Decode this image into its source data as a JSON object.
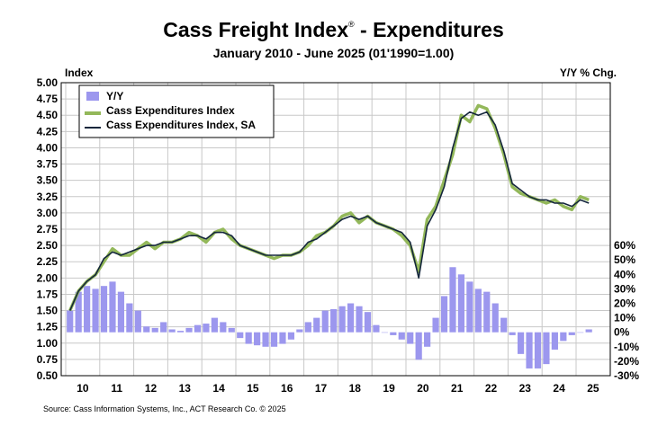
{
  "title": "Cass Freight Index",
  "title_mark": "®",
  "title_suffix": " - Expenditures",
  "subtitle": "January 2010 - June 2025 (01'1990=1.00)",
  "left_axis_label": "Index",
  "right_axis_label": "Y/Y % Chg.",
  "source": "Source: Cass Information Systems, Inc., ACT Research Co. © 2025",
  "colors": {
    "yy_bars": "#9c97ee",
    "index_line": "#93b85a",
    "sa_line": "#14263c",
    "grid": "#c8c8c8"
  },
  "chart_data": {
    "type": "line",
    "grid": true,
    "legend_position": "top-left",
    "x_tick_labels": [
      "10",
      "11",
      "12",
      "13",
      "14",
      "15",
      "16",
      "17",
      "18",
      "19",
      "20",
      "21",
      "22",
      "23",
      "24",
      "25"
    ],
    "left_axis": {
      "ylim": [
        0.5,
        5.0
      ],
      "ticks": [
        "0.50",
        "0.75",
        "1.00",
        "1.25",
        "1.50",
        "1.75",
        "2.00",
        "2.25",
        "2.50",
        "2.75",
        "3.00",
        "3.25",
        "3.50",
        "3.75",
        "4.00",
        "4.25",
        "4.50",
        "4.75",
        "5.00"
      ]
    },
    "right_axis": {
      "ylim": [
        -30,
        60
      ],
      "ticks": [
        "-30%",
        "-20%",
        "-10%",
        "0%",
        "10%",
        "20%",
        "30%",
        "40%",
        "50%",
        "60%"
      ]
    },
    "series": [
      {
        "name": "Y/Y",
        "type": "bar",
        "axis": "right",
        "unit": "%",
        "x_quarters": [
          "10Q1",
          "10Q2",
          "10Q3",
          "10Q4",
          "11Q1",
          "11Q2",
          "11Q3",
          "11Q4",
          "12Q1",
          "12Q2",
          "12Q3",
          "12Q4",
          "13Q1",
          "13Q2",
          "13Q3",
          "13Q4",
          "14Q1",
          "14Q2",
          "14Q3",
          "14Q4",
          "15Q1",
          "15Q2",
          "15Q3",
          "15Q4",
          "16Q1",
          "16Q2",
          "16Q3",
          "16Q4",
          "17Q1",
          "17Q2",
          "17Q3",
          "17Q4",
          "18Q1",
          "18Q2",
          "18Q3",
          "18Q4",
          "19Q1",
          "19Q2",
          "19Q3",
          "19Q4",
          "20Q1",
          "20Q2",
          "20Q3",
          "20Q4",
          "21Q1",
          "21Q2",
          "21Q3",
          "21Q4",
          "22Q1",
          "22Q2",
          "22Q3",
          "22Q4",
          "23Q1",
          "23Q2",
          "23Q3",
          "23Q4",
          "24Q1",
          "24Q2",
          "24Q3",
          "24Q4",
          "25Q1",
          "25Q2"
        ],
        "values": [
          15,
          28,
          32,
          30,
          32,
          35,
          28,
          20,
          15,
          4,
          3,
          7,
          2,
          1,
          3,
          5,
          6,
          10,
          7,
          3,
          -4,
          -8,
          -9,
          -10,
          -10,
          -8,
          -5,
          2,
          7,
          10,
          15,
          16,
          18,
          20,
          18,
          14,
          5,
          0,
          -2,
          -5,
          -8,
          -19,
          -10,
          10,
          25,
          45,
          40,
          35,
          30,
          28,
          20,
          10,
          -2,
          -15,
          -25,
          -25,
          -22,
          -12,
          -6,
          -2,
          0,
          2
        ]
      },
      {
        "name": "Cass Expenditures Index",
        "type": "line",
        "axis": "left",
        "x_quarters": [
          "10Q1",
          "10Q2",
          "10Q3",
          "10Q4",
          "11Q1",
          "11Q2",
          "11Q3",
          "11Q4",
          "12Q1",
          "12Q2",
          "12Q3",
          "12Q4",
          "13Q1",
          "13Q2",
          "13Q3",
          "13Q4",
          "14Q1",
          "14Q2",
          "14Q3",
          "14Q4",
          "15Q1",
          "15Q2",
          "15Q3",
          "15Q4",
          "16Q1",
          "16Q2",
          "16Q3",
          "16Q4",
          "17Q1",
          "17Q2",
          "17Q3",
          "17Q4",
          "18Q1",
          "18Q2",
          "18Q3",
          "18Q4",
          "19Q1",
          "19Q2",
          "19Q3",
          "19Q4",
          "20Q1",
          "20Q2",
          "20Q3",
          "20Q4",
          "21Q1",
          "21Q2",
          "21Q3",
          "21Q4",
          "22Q1",
          "22Q2",
          "22Q3",
          "22Q4",
          "23Q1",
          "23Q2",
          "23Q3",
          "23Q4",
          "24Q1",
          "24Q2",
          "24Q3",
          "24Q4",
          "25Q1",
          "25Q2"
        ],
        "values": [
          1.5,
          1.8,
          1.95,
          2.05,
          2.25,
          2.45,
          2.35,
          2.35,
          2.45,
          2.55,
          2.45,
          2.55,
          2.55,
          2.6,
          2.7,
          2.65,
          2.55,
          2.7,
          2.75,
          2.6,
          2.5,
          2.45,
          2.4,
          2.35,
          2.3,
          2.35,
          2.35,
          2.4,
          2.5,
          2.65,
          2.7,
          2.8,
          2.95,
          3.0,
          2.85,
          2.95,
          2.85,
          2.8,
          2.75,
          2.65,
          2.5,
          2.1,
          2.9,
          3.1,
          3.5,
          3.9,
          4.5,
          4.4,
          4.65,
          4.6,
          4.3,
          3.9,
          3.4,
          3.3,
          3.25,
          3.2,
          3.15,
          3.2,
          3.1,
          3.05,
          3.25,
          3.2
        ]
      },
      {
        "name": "Cass Expenditures Index, SA",
        "type": "line",
        "axis": "left",
        "x_quarters": [
          "10Q1",
          "10Q2",
          "10Q3",
          "10Q4",
          "11Q1",
          "11Q2",
          "11Q3",
          "11Q4",
          "12Q1",
          "12Q2",
          "12Q3",
          "12Q4",
          "13Q1",
          "13Q2",
          "13Q3",
          "13Q4",
          "14Q1",
          "14Q2",
          "14Q3",
          "14Q4",
          "15Q1",
          "15Q2",
          "15Q3",
          "15Q4",
          "16Q1",
          "16Q2",
          "16Q3",
          "16Q4",
          "17Q1",
          "17Q2",
          "17Q3",
          "17Q4",
          "18Q1",
          "18Q2",
          "18Q3",
          "18Q4",
          "19Q1",
          "19Q2",
          "19Q3",
          "19Q4",
          "20Q1",
          "20Q2",
          "20Q3",
          "20Q4",
          "21Q1",
          "21Q2",
          "21Q3",
          "21Q4",
          "22Q1",
          "22Q2",
          "22Q3",
          "22Q4",
          "23Q1",
          "23Q2",
          "23Q3",
          "23Q4",
          "24Q1",
          "24Q2",
          "24Q3",
          "24Q4",
          "25Q1",
          "25Q2"
        ],
        "values": [
          1.5,
          1.8,
          1.95,
          2.05,
          2.3,
          2.4,
          2.35,
          2.4,
          2.45,
          2.5,
          2.5,
          2.55,
          2.55,
          2.6,
          2.65,
          2.65,
          2.6,
          2.7,
          2.7,
          2.65,
          2.5,
          2.45,
          2.4,
          2.35,
          2.35,
          2.35,
          2.35,
          2.4,
          2.55,
          2.6,
          2.7,
          2.8,
          2.9,
          2.95,
          2.9,
          2.95,
          2.85,
          2.8,
          2.75,
          2.7,
          2.55,
          2.0,
          2.8,
          3.05,
          3.4,
          4.0,
          4.45,
          4.55,
          4.5,
          4.55,
          4.35,
          3.95,
          3.45,
          3.35,
          3.25,
          3.2,
          3.2,
          3.15,
          3.15,
          3.1,
          3.2,
          3.15
        ]
      }
    ]
  }
}
